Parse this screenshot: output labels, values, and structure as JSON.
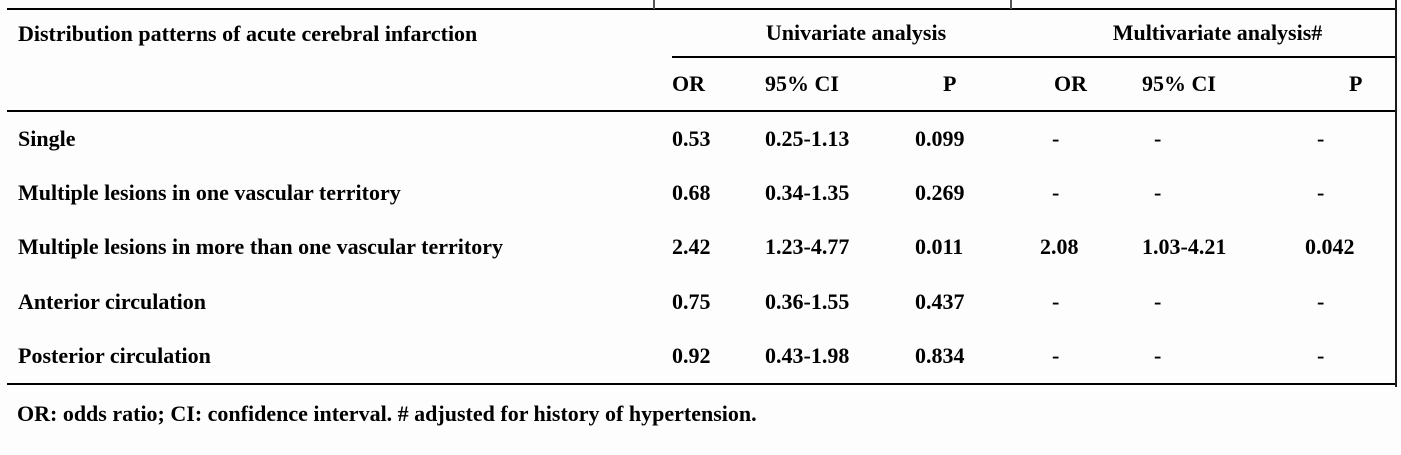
{
  "table": {
    "col1_header": "Distribution patterns of acute cerebral infarction",
    "groups": [
      {
        "label": "Univariate analysis",
        "or": "OR",
        "ci": "95% CI",
        "p": "P"
      },
      {
        "label": "Multivariate analysis#",
        "or": "OR",
        "ci": "95% CI",
        "p": "P"
      }
    ],
    "rows": [
      {
        "label": "Single",
        "cells": [
          "0.53",
          "0.25-1.13",
          "0.099",
          "-",
          "-",
          "-"
        ]
      },
      {
        "label": "Multiple lesions in one vascular territory",
        "cells": [
          "0.68",
          "0.34-1.35",
          "0.269",
          "-",
          "-",
          "-"
        ]
      },
      {
        "label": "Multiple lesions in more than one vascular territory",
        "cells": [
          "2.42",
          "1.23-4.77",
          "0.011",
          "2.08",
          "1.03-4.21",
          "0.042"
        ]
      },
      {
        "label": "Anterior circulation",
        "cells": [
          "0.75",
          "0.36-1.55",
          "0.437",
          "-",
          "-",
          "-"
        ]
      },
      {
        "label": "Posterior circulation",
        "cells": [
          "0.92",
          "0.43-1.98",
          "0.834",
          "-",
          "-",
          "-"
        ]
      }
    ],
    "footnote": "OR: odds ratio; CI: confidence interval. # adjusted for history of hypertension."
  },
  "colors": {
    "text": "#000000",
    "rule": "#000000",
    "background": "#fdfdfd"
  }
}
